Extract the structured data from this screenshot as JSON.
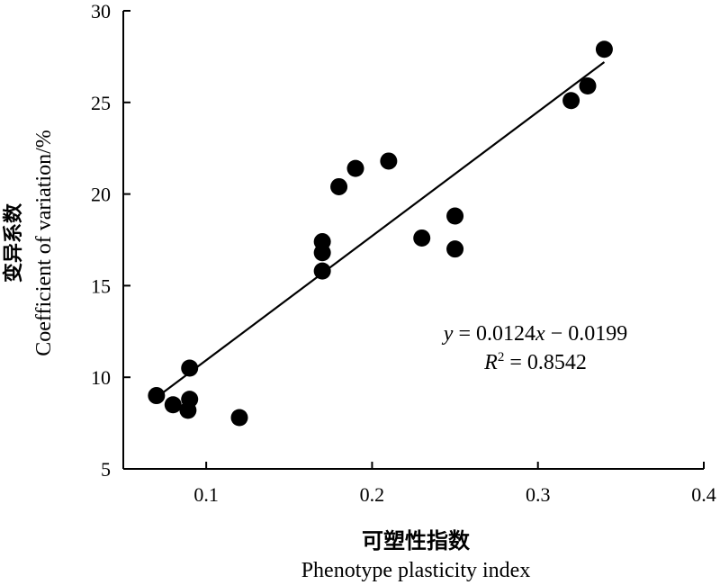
{
  "chart_data": {
    "type": "scatter",
    "xlabel": "可塑性指数",
    "xlabel_en": "Phenotype plasticity index",
    "ylabel": "变异系数",
    "ylabel_en": "Coefficient of variation/%",
    "xlim": [
      0.05,
      0.4
    ],
    "ylim": [
      5,
      30
    ],
    "xticks": [
      0.1,
      0.2,
      0.3,
      0.4
    ],
    "xtick_labels": [
      "0.1",
      "0.2",
      "0.3",
      "0.4"
    ],
    "yticks": [
      5,
      10,
      15,
      20,
      25,
      30
    ],
    "ytick_labels": [
      "5",
      "10",
      "15",
      "20",
      "25",
      "30"
    ],
    "grid": false,
    "points": [
      {
        "x": 0.07,
        "y": 9.0
      },
      {
        "x": 0.08,
        "y": 8.5
      },
      {
        "x": 0.089,
        "y": 8.2
      },
      {
        "x": 0.09,
        "y": 8.8
      },
      {
        "x": 0.09,
        "y": 10.5
      },
      {
        "x": 0.12,
        "y": 7.8
      },
      {
        "x": 0.17,
        "y": 15.8
      },
      {
        "x": 0.17,
        "y": 16.8
      },
      {
        "x": 0.17,
        "y": 17.4
      },
      {
        "x": 0.18,
        "y": 20.4
      },
      {
        "x": 0.19,
        "y": 21.4
      },
      {
        "x": 0.21,
        "y": 21.8
      },
      {
        "x": 0.23,
        "y": 17.6
      },
      {
        "x": 0.25,
        "y": 18.8
      },
      {
        "x": 0.25,
        "y": 17.0
      },
      {
        "x": 0.32,
        "y": 25.1
      },
      {
        "x": 0.33,
        "y": 25.9
      },
      {
        "x": 0.34,
        "y": 27.9
      }
    ],
    "trendline": {
      "x_start": 0.07,
      "y_start": 8.9,
      "x_end": 0.34,
      "y_end": 27.2
    },
    "annotation": {
      "equation": {
        "y": "y",
        "eq1": " = 0.0124",
        "x": "x",
        "eq2": " − 0.0199"
      },
      "r2": {
        "R": "R",
        "sup": "2",
        "rest": " = 0.8542"
      }
    }
  }
}
